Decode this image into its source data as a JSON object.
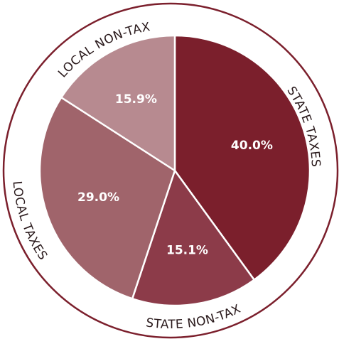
{
  "chart_data": {
    "type": "pie",
    "categories": [
      "STATE TAXES",
      "STATE NON-TAX",
      "LOCAL TAXES",
      "LOCAL NON-TAX"
    ],
    "values": [
      40.0,
      15.1,
      29.0,
      15.9
    ],
    "value_labels": [
      "40.0%",
      "15.1%",
      "29.0%",
      "15.9%"
    ],
    "colors": [
      "#7b1f2c",
      "#8c3b49",
      "#a0646b",
      "#b78a90"
    ]
  }
}
